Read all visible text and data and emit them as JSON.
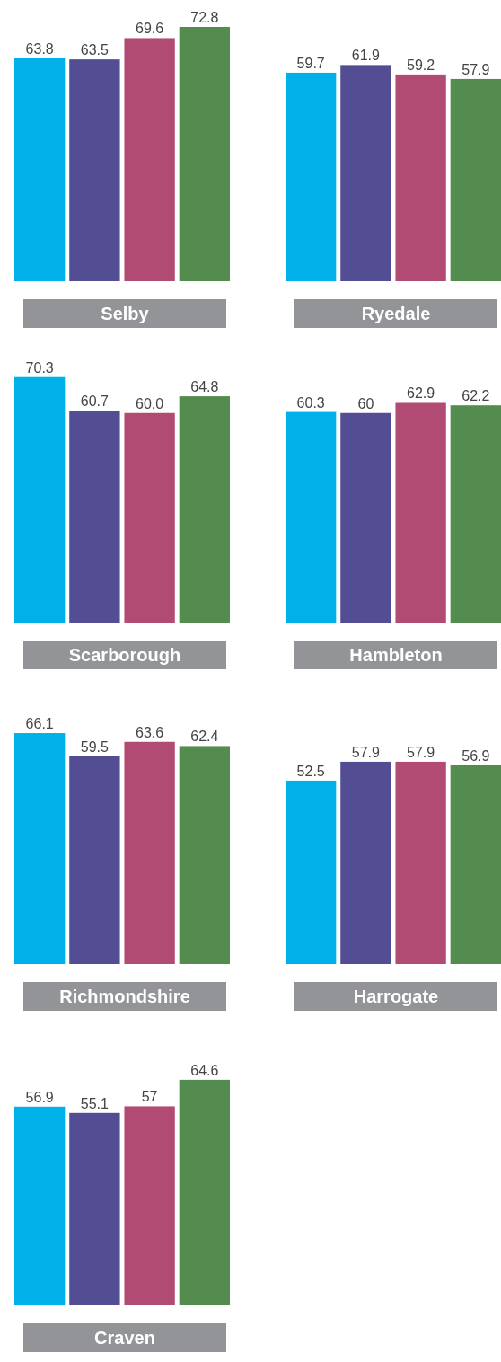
{
  "chart_data": [
    {
      "type": "bar",
      "title": "Selby",
      "categories": [
        null,
        null,
        null,
        null
      ],
      "values": [
        63.8,
        63.5,
        69.6,
        72.8
      ],
      "value_labels": [
        "63.8",
        "63.5",
        "69.6",
        "72.8"
      ],
      "colors": [
        "#00b0e8",
        "#534d94",
        "#b24b73",
        "#548b4e"
      ],
      "tick_labels": false
    },
    {
      "type": "bar",
      "title": "Ryedale",
      "categories": [
        null,
        null,
        null,
        null
      ],
      "values": [
        59.7,
        61.9,
        59.2,
        57.9
      ],
      "value_labels": [
        "59.7",
        "61.9",
        "59.2",
        "57.9"
      ],
      "colors": [
        "#00b0e8",
        "#534d94",
        "#b24b73",
        "#548b4e"
      ],
      "tick_labels": false
    },
    {
      "type": "bar",
      "title": "Scarborough",
      "categories": [
        null,
        null,
        null,
        null
      ],
      "values": [
        70.3,
        60.7,
        60.0,
        64.8
      ],
      "value_labels": [
        "70.3",
        "60.7",
        "60.0",
        "64.8"
      ],
      "colors": [
        "#00b0e8",
        "#534d94",
        "#b24b73",
        "#548b4e"
      ],
      "tick_labels": false
    },
    {
      "type": "bar",
      "title": "Hambleton",
      "categories": [
        null,
        null,
        null,
        null
      ],
      "values": [
        60.3,
        60,
        62.9,
        62.2
      ],
      "value_labels": [
        "60.3",
        "60",
        "62.9",
        "62.2"
      ],
      "colors": [
        "#00b0e8",
        "#534d94",
        "#b24b73",
        "#548b4e"
      ],
      "tick_labels": false
    },
    {
      "type": "bar",
      "title": "Richmondshire",
      "categories": [
        null,
        null,
        null,
        null
      ],
      "values": [
        66.1,
        59.5,
        63.6,
        62.4
      ],
      "value_labels": [
        "66.1",
        "59.5",
        "63.6",
        "62.4"
      ],
      "colors": [
        "#00b0e8",
        "#534d94",
        "#b24b73",
        "#548b4e"
      ],
      "tick_labels": false
    },
    {
      "type": "bar",
      "title": "Harrogate",
      "categories": [
        null,
        null,
        null,
        null
      ],
      "values": [
        52.5,
        57.9,
        57.9,
        56.9
      ],
      "value_labels": [
        "52.5",
        "57.9",
        "57.9",
        "56.9"
      ],
      "colors": [
        "#00b0e8",
        "#534d94",
        "#b24b73",
        "#548b4e"
      ],
      "tick_labels": false
    },
    {
      "type": "bar",
      "title": "Craven",
      "categories": [
        null,
        null,
        null,
        null
      ],
      "values": [
        56.9,
        55.1,
        57,
        64.6
      ],
      "value_labels": [
        "56.9",
        "55.1",
        "57",
        "64.6"
      ],
      "colors": [
        "#00b0e8",
        "#534d94",
        "#b24b73",
        "#548b4e"
      ],
      "tick_labels": false
    }
  ]
}
